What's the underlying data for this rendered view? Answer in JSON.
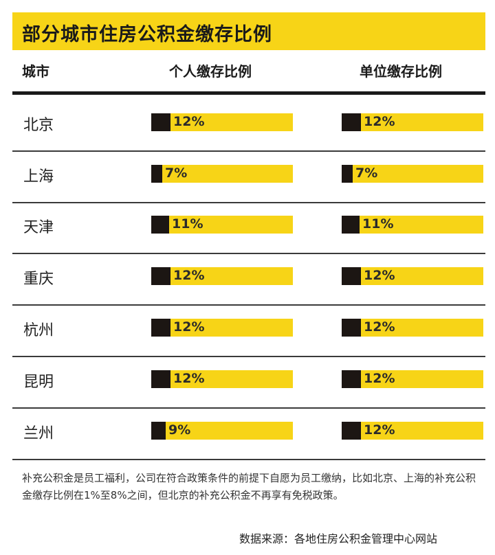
{
  "title": "部分城市住房公积金缴存比例",
  "headers": {
    "city": "城市",
    "individual": "个人缴存比例",
    "employer": "单位缴存比例"
  },
  "colors": {
    "accent": "#f7d417",
    "dark": "#1c1613"
  },
  "chart_data": {
    "type": "bar",
    "title": "部分城市住房公积金缴存比例",
    "categories": [
      "北京",
      "上海",
      "天津",
      "重庆",
      "杭州",
      "昆明",
      "兰州"
    ],
    "series": [
      {
        "name": "个人缴存比例",
        "values": [
          12,
          7,
          11,
          12,
          12,
          12,
          9
        ],
        "labels": [
          "12%",
          "7%",
          "11%",
          "12%",
          "12%",
          "12%",
          "9%"
        ]
      },
      {
        "name": "单位缴存比例",
        "values": [
          12,
          7,
          11,
          12,
          12,
          12,
          12
        ],
        "labels": [
          "12%",
          "7%",
          "11%",
          "12%",
          "12%",
          "12%",
          "12%"
        ]
      }
    ],
    "unit": "%"
  },
  "note": "补充公积金是员工福利，公司在符合政策条件的前提下自愿为员工缴纳，比如北京、上海的补充公积金缴存比例在1%至8%之间，但北京的补充公积金不再享有免税政策。",
  "source": "数据来源：各地住房公积金管理中心网站"
}
